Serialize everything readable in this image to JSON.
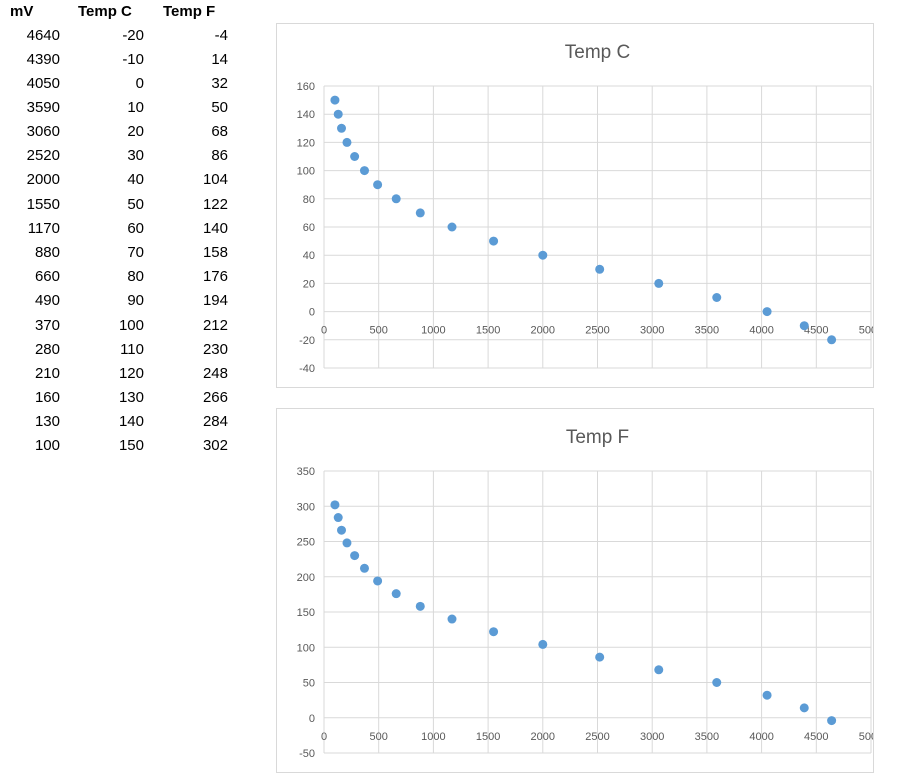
{
  "table": {
    "headers": [
      "mV",
      "Temp C",
      "Temp F"
    ],
    "rows": [
      [
        "4640",
        "-20",
        "-4"
      ],
      [
        "4390",
        "-10",
        "14"
      ],
      [
        "4050",
        "0",
        "32"
      ],
      [
        "3590",
        "10",
        "50"
      ],
      [
        "3060",
        "20",
        "68"
      ],
      [
        "2520",
        "30",
        "86"
      ],
      [
        "2000",
        "40",
        "104"
      ],
      [
        "1550",
        "50",
        "122"
      ],
      [
        "1170",
        "60",
        "140"
      ],
      [
        "880",
        "70",
        "158"
      ],
      [
        "660",
        "80",
        "176"
      ],
      [
        "490",
        "90",
        "194"
      ],
      [
        "370",
        "100",
        "212"
      ],
      [
        "280",
        "110",
        "230"
      ],
      [
        "210",
        "120",
        "248"
      ],
      [
        "160",
        "130",
        "266"
      ],
      [
        "130",
        "140",
        "284"
      ],
      [
        "100",
        "150",
        "302"
      ]
    ]
  },
  "chart_data": [
    {
      "type": "scatter",
      "title": "Temp C",
      "xlabel": "",
      "ylabel": "",
      "xlim": [
        0,
        5000
      ],
      "ylim": [
        -40,
        160
      ],
      "xticks": [
        0,
        500,
        1000,
        1500,
        2000,
        2500,
        3000,
        3500,
        4000,
        4500,
        5000
      ],
      "yticks": [
        -40,
        -20,
        0,
        20,
        40,
        60,
        80,
        100,
        120,
        140,
        160
      ],
      "grid": true,
      "color": "#5b9bd5",
      "series": [
        {
          "x": [
            4640,
            4390,
            4050,
            3590,
            3060,
            2520,
            2000,
            1550,
            1170,
            880,
            660,
            490,
            370,
            280,
            210,
            160,
            130,
            100
          ],
          "y": [
            -20,
            -10,
            0,
            10,
            20,
            30,
            40,
            50,
            60,
            70,
            80,
            90,
            100,
            110,
            120,
            130,
            140,
            150
          ]
        }
      ]
    },
    {
      "type": "scatter",
      "title": "Temp F",
      "xlabel": "",
      "ylabel": "",
      "xlim": [
        0,
        5000
      ],
      "ylim": [
        -50,
        350
      ],
      "xticks": [
        0,
        500,
        1000,
        1500,
        2000,
        2500,
        3000,
        3500,
        4000,
        4500,
        5000
      ],
      "yticks": [
        -50,
        0,
        50,
        100,
        150,
        200,
        250,
        300,
        350
      ],
      "grid": true,
      "color": "#5b9bd5",
      "series": [
        {
          "x": [
            4640,
            4390,
            4050,
            3590,
            3060,
            2520,
            2000,
            1550,
            1170,
            880,
            660,
            490,
            370,
            280,
            210,
            160,
            130,
            100
          ],
          "y": [
            -4,
            14,
            32,
            50,
            68,
            86,
            104,
            122,
            140,
            158,
            176,
            194,
            212,
            230,
            248,
            266,
            284,
            302
          ]
        }
      ]
    }
  ]
}
